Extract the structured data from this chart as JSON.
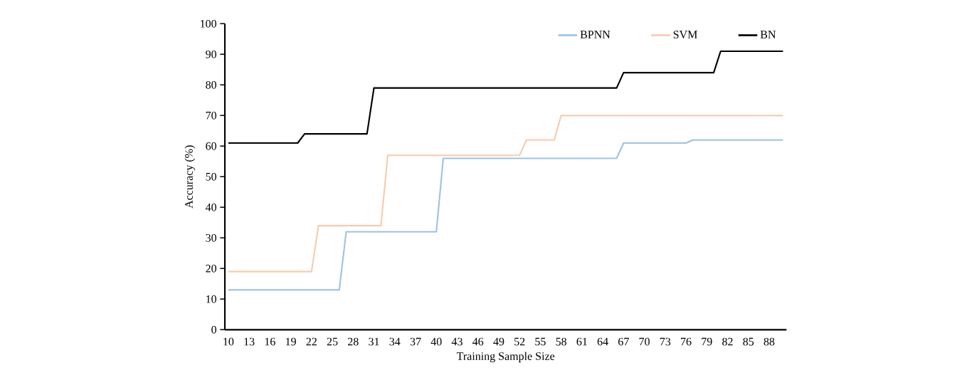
{
  "chart_data": {
    "type": "line",
    "xlabel": "Training Sample Size",
    "ylabel": "Accuracy (%)",
    "x": [
      10,
      11,
      12,
      13,
      14,
      15,
      16,
      17,
      18,
      19,
      20,
      21,
      22,
      23,
      24,
      25,
      26,
      27,
      28,
      29,
      30,
      31,
      32,
      33,
      34,
      35,
      36,
      37,
      38,
      39,
      40,
      41,
      42,
      43,
      44,
      45,
      46,
      47,
      48,
      49,
      50,
      51,
      52,
      53,
      54,
      55,
      56,
      57,
      58,
      59,
      60,
      61,
      62,
      63,
      64,
      65,
      66,
      67,
      68,
      69,
      70,
      71,
      72,
      73,
      74,
      75,
      76,
      77,
      78,
      79,
      80,
      81,
      82,
      83,
      84,
      85,
      86,
      87,
      88,
      89,
      90
    ],
    "xlim": [
      9.5,
      90.5
    ],
    "xticks": [
      10,
      13,
      16,
      19,
      22,
      25,
      28,
      31,
      34,
      37,
      40,
      43,
      46,
      49,
      52,
      55,
      58,
      61,
      64,
      67,
      70,
      73,
      76,
      79,
      82,
      85,
      88
    ],
    "ylim": [
      0,
      100
    ],
    "yticks": [
      0,
      10,
      20,
      30,
      40,
      50,
      60,
      70,
      80,
      90,
      100
    ],
    "legend": "top right",
    "grid": false,
    "line_style": "solid",
    "series": [
      {
        "name": "BPNN",
        "color": "#9dc3e6",
        "values": [
          13,
          13,
          13,
          13,
          13,
          13,
          13,
          13,
          13,
          13,
          13,
          13,
          13,
          13,
          13,
          13,
          13,
          32,
          32,
          32,
          32,
          32,
          32,
          32,
          32,
          32,
          32,
          32,
          32,
          32,
          32,
          56,
          56,
          56,
          56,
          56,
          56,
          56,
          56,
          56,
          56,
          56,
          56,
          56,
          56,
          56,
          56,
          56,
          56,
          56,
          56,
          56,
          56,
          56,
          56,
          56,
          56,
          61,
          61,
          61,
          61,
          61,
          61,
          61,
          61,
          61,
          61,
          62,
          62,
          62,
          62,
          62,
          62,
          62,
          62,
          62,
          62,
          62,
          62,
          62,
          62
        ]
      },
      {
        "name": "SVM",
        "color": "#f8cbad",
        "values": [
          19,
          19,
          19,
          19,
          19,
          19,
          19,
          19,
          19,
          19,
          19,
          19,
          19,
          34,
          34,
          34,
          34,
          34,
          34,
          34,
          34,
          34,
          34,
          57,
          57,
          57,
          57,
          57,
          57,
          57,
          57,
          57,
          57,
          57,
          57,
          57,
          57,
          57,
          57,
          57,
          57,
          57,
          57,
          62,
          62,
          62,
          62,
          62,
          70,
          70,
          70,
          70,
          70,
          70,
          70,
          70,
          70,
          70,
          70,
          70,
          70,
          70,
          70,
          70,
          70,
          70,
          70,
          70,
          70,
          70,
          70,
          70,
          70,
          70,
          70,
          70,
          70,
          70,
          70,
          70,
          70
        ]
      },
      {
        "name": "BN",
        "color": "#000000",
        "values": [
          61,
          61,
          61,
          61,
          61,
          61,
          61,
          61,
          61,
          61,
          61,
          64,
          64,
          64,
          64,
          64,
          64,
          64,
          64,
          64,
          64,
          79,
          79,
          79,
          79,
          79,
          79,
          79,
          79,
          79,
          79,
          79,
          79,
          79,
          79,
          79,
          79,
          79,
          79,
          79,
          79,
          79,
          79,
          79,
          79,
          79,
          79,
          79,
          79,
          79,
          79,
          79,
          79,
          79,
          79,
          79,
          79,
          84,
          84,
          84,
          84,
          84,
          84,
          84,
          84,
          84,
          84,
          84,
          84,
          84,
          84,
          91,
          91,
          91,
          91,
          91,
          91,
          91,
          91,
          91,
          91
        ]
      }
    ]
  }
}
